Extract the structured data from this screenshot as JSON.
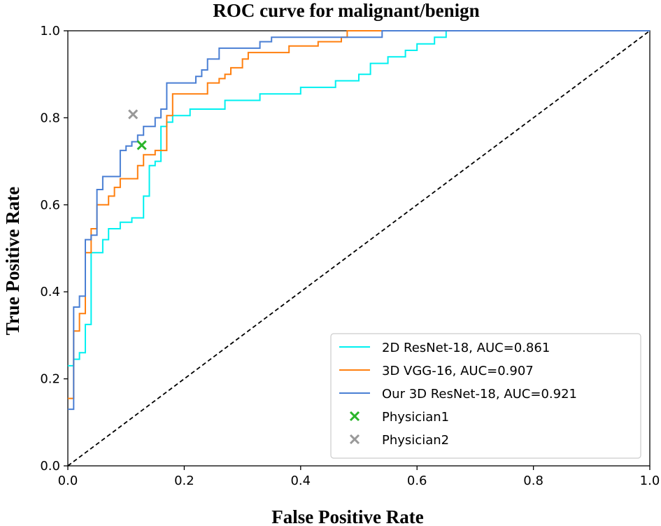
{
  "chart_data": {
    "type": "line",
    "title": "ROC curve for malignant/benign",
    "xlabel": "False Positive Rate",
    "ylabel": "True Positive Rate",
    "xlim": [
      0.0,
      1.0
    ],
    "ylim": [
      0.0,
      1.0
    ],
    "grid": false,
    "legend_position": "lower-right",
    "xticks": [
      "0.0",
      "0.2",
      "0.4",
      "0.6",
      "0.8",
      "1.0"
    ],
    "yticks": [
      "0.0",
      "0.2",
      "0.4",
      "0.6",
      "0.8",
      "1.0"
    ],
    "series": [
      {
        "name": "2D ResNet-18, AUC=0.861",
        "color": "#00f0f0",
        "points": [
          [
            0,
            0.23
          ],
          [
            0.01,
            0.23
          ],
          [
            0.01,
            0.245
          ],
          [
            0.02,
            0.245
          ],
          [
            0.02,
            0.26
          ],
          [
            0.03,
            0.26
          ],
          [
            0.03,
            0.325
          ],
          [
            0.04,
            0.325
          ],
          [
            0.04,
            0.49
          ],
          [
            0.06,
            0.49
          ],
          [
            0.06,
            0.52
          ],
          [
            0.07,
            0.52
          ],
          [
            0.07,
            0.545
          ],
          [
            0.09,
            0.545
          ],
          [
            0.09,
            0.56
          ],
          [
            0.11,
            0.56
          ],
          [
            0.11,
            0.57
          ],
          [
            0.13,
            0.57
          ],
          [
            0.13,
            0.62
          ],
          [
            0.14,
            0.62
          ],
          [
            0.14,
            0.69
          ],
          [
            0.15,
            0.69
          ],
          [
            0.15,
            0.7
          ],
          [
            0.16,
            0.7
          ],
          [
            0.16,
            0.78
          ],
          [
            0.17,
            0.78
          ],
          [
            0.17,
            0.79
          ],
          [
            0.18,
            0.79
          ],
          [
            0.18,
            0.805
          ],
          [
            0.21,
            0.805
          ],
          [
            0.21,
            0.82
          ],
          [
            0.27,
            0.82
          ],
          [
            0.27,
            0.84
          ],
          [
            0.33,
            0.84
          ],
          [
            0.33,
            0.855
          ],
          [
            0.4,
            0.855
          ],
          [
            0.4,
            0.87
          ],
          [
            0.46,
            0.87
          ],
          [
            0.46,
            0.885
          ],
          [
            0.5,
            0.885
          ],
          [
            0.5,
            0.9
          ],
          [
            0.52,
            0.9
          ],
          [
            0.52,
            0.925
          ],
          [
            0.55,
            0.925
          ],
          [
            0.55,
            0.94
          ],
          [
            0.58,
            0.94
          ],
          [
            0.58,
            0.955
          ],
          [
            0.6,
            0.955
          ],
          [
            0.6,
            0.97
          ],
          [
            0.63,
            0.97
          ],
          [
            0.63,
            0.985
          ],
          [
            0.65,
            0.985
          ],
          [
            0.65,
            1.0
          ],
          [
            1.0,
            1.0
          ]
        ]
      },
      {
        "name": "3D VGG-16, AUC=0.907",
        "color": "#ff7f0e",
        "points": [
          [
            0,
            0.155
          ],
          [
            0.01,
            0.155
          ],
          [
            0.01,
            0.31
          ],
          [
            0.02,
            0.31
          ],
          [
            0.02,
            0.35
          ],
          [
            0.03,
            0.35
          ],
          [
            0.03,
            0.49
          ],
          [
            0.04,
            0.49
          ],
          [
            0.04,
            0.545
          ],
          [
            0.05,
            0.545
          ],
          [
            0.05,
            0.6
          ],
          [
            0.07,
            0.6
          ],
          [
            0.07,
            0.62
          ],
          [
            0.08,
            0.62
          ],
          [
            0.08,
            0.64
          ],
          [
            0.09,
            0.64
          ],
          [
            0.09,
            0.66
          ],
          [
            0.12,
            0.66
          ],
          [
            0.12,
            0.69
          ],
          [
            0.13,
            0.69
          ],
          [
            0.13,
            0.715
          ],
          [
            0.15,
            0.715
          ],
          [
            0.15,
            0.725
          ],
          [
            0.17,
            0.725
          ],
          [
            0.17,
            0.805
          ],
          [
            0.18,
            0.805
          ],
          [
            0.18,
            0.855
          ],
          [
            0.24,
            0.855
          ],
          [
            0.24,
            0.88
          ],
          [
            0.26,
            0.88
          ],
          [
            0.26,
            0.89
          ],
          [
            0.27,
            0.89
          ],
          [
            0.27,
            0.9
          ],
          [
            0.28,
            0.9
          ],
          [
            0.28,
            0.915
          ],
          [
            0.3,
            0.915
          ],
          [
            0.3,
            0.935
          ],
          [
            0.31,
            0.935
          ],
          [
            0.31,
            0.95
          ],
          [
            0.38,
            0.95
          ],
          [
            0.38,
            0.965
          ],
          [
            0.43,
            0.965
          ],
          [
            0.43,
            0.975
          ],
          [
            0.47,
            0.975
          ],
          [
            0.47,
            0.985
          ],
          [
            0.48,
            0.985
          ],
          [
            0.48,
            1.0
          ],
          [
            0.54,
            1.0
          ]
        ]
      },
      {
        "name": "Our 3D ResNet-18, AUC=0.921",
        "color": "#4a7fd4",
        "points": [
          [
            0,
            0.13
          ],
          [
            0.01,
            0.13
          ],
          [
            0.01,
            0.365
          ],
          [
            0.02,
            0.365
          ],
          [
            0.02,
            0.39
          ],
          [
            0.03,
            0.39
          ],
          [
            0.03,
            0.52
          ],
          [
            0.04,
            0.52
          ],
          [
            0.04,
            0.53
          ],
          [
            0.05,
            0.53
          ],
          [
            0.05,
            0.635
          ],
          [
            0.06,
            0.635
          ],
          [
            0.06,
            0.665
          ],
          [
            0.09,
            0.665
          ],
          [
            0.09,
            0.725
          ],
          [
            0.1,
            0.725
          ],
          [
            0.1,
            0.735
          ],
          [
            0.11,
            0.735
          ],
          [
            0.11,
            0.745
          ],
          [
            0.12,
            0.745
          ],
          [
            0.12,
            0.76
          ],
          [
            0.13,
            0.76
          ],
          [
            0.13,
            0.78
          ],
          [
            0.15,
            0.78
          ],
          [
            0.15,
            0.8
          ],
          [
            0.16,
            0.8
          ],
          [
            0.16,
            0.82
          ],
          [
            0.17,
            0.82
          ],
          [
            0.17,
            0.88
          ],
          [
            0.22,
            0.88
          ],
          [
            0.22,
            0.895
          ],
          [
            0.23,
            0.895
          ],
          [
            0.23,
            0.91
          ],
          [
            0.24,
            0.91
          ],
          [
            0.24,
            0.935
          ],
          [
            0.26,
            0.935
          ],
          [
            0.26,
            0.96
          ],
          [
            0.33,
            0.96
          ],
          [
            0.33,
            0.975
          ],
          [
            0.35,
            0.975
          ],
          [
            0.35,
            0.985
          ],
          [
            0.54,
            0.985
          ],
          [
            0.54,
            1.0
          ],
          [
            1.0,
            1.0
          ]
        ]
      }
    ],
    "markers": [
      {
        "name": "Physician1",
        "x": 0.127,
        "y": 0.737,
        "color": "#2ab52a",
        "marker": "x"
      },
      {
        "name": "Physician2",
        "x": 0.112,
        "y": 0.808,
        "color": "#999999",
        "marker": "x"
      }
    ],
    "reference_line": {
      "points": [
        [
          0,
          0
        ],
        [
          1,
          1
        ]
      ],
      "style": "dashed",
      "color": "#000000"
    }
  }
}
